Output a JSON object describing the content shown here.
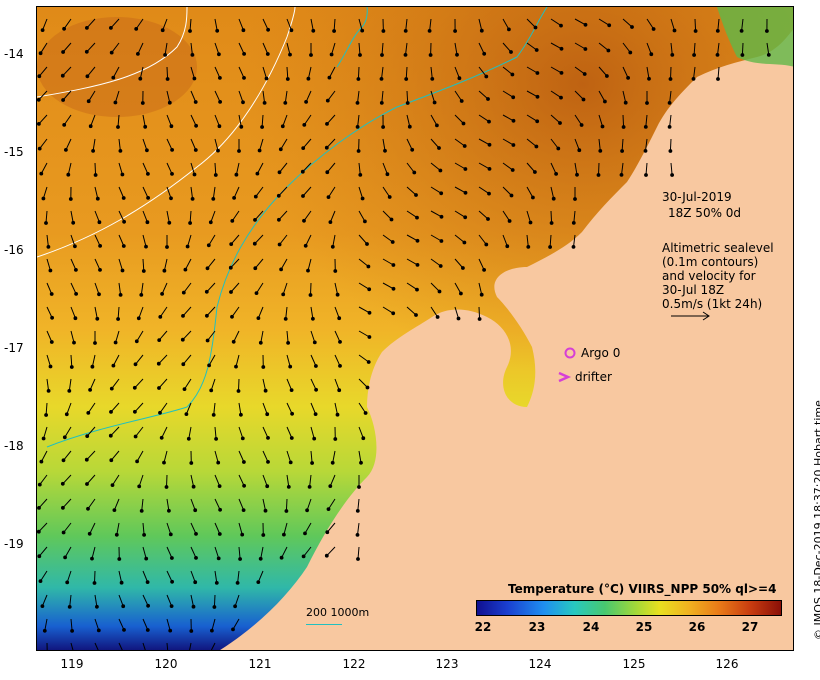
{
  "map": {
    "lat_labels": [
      "-14",
      "-15",
      "-16",
      "-17",
      "-18",
      "-19"
    ],
    "lon_labels": [
      "119",
      "120",
      "121",
      "122",
      "123",
      "124",
      "125",
      "126"
    ],
    "date_line1": "30-Jul-2019",
    "date_line2": "18Z  50% 0d",
    "alti_lines": [
      "Altimetric sealevel",
      "(0.1m contours)",
      "and velocity for",
      "30-Jul 18Z",
      "0.5m/s (1kt 24h)"
    ],
    "argo_label": "Argo 0",
    "drifter_label": "drifter",
    "scale_label": "200  1000m",
    "credit": "© IMOS 18-Dec-2019 18:37:20 Hobart time",
    "colorbar": {
      "title": "Temperature (°C) VIIRS_NPP 50% ql>=4",
      "ticks": [
        "22",
        "23",
        "24",
        "25",
        "26",
        "27"
      ]
    },
    "colors": {
      "land": "#f8c8a0",
      "contour": "#20c0c0",
      "marker": "#d63fd6"
    }
  }
}
